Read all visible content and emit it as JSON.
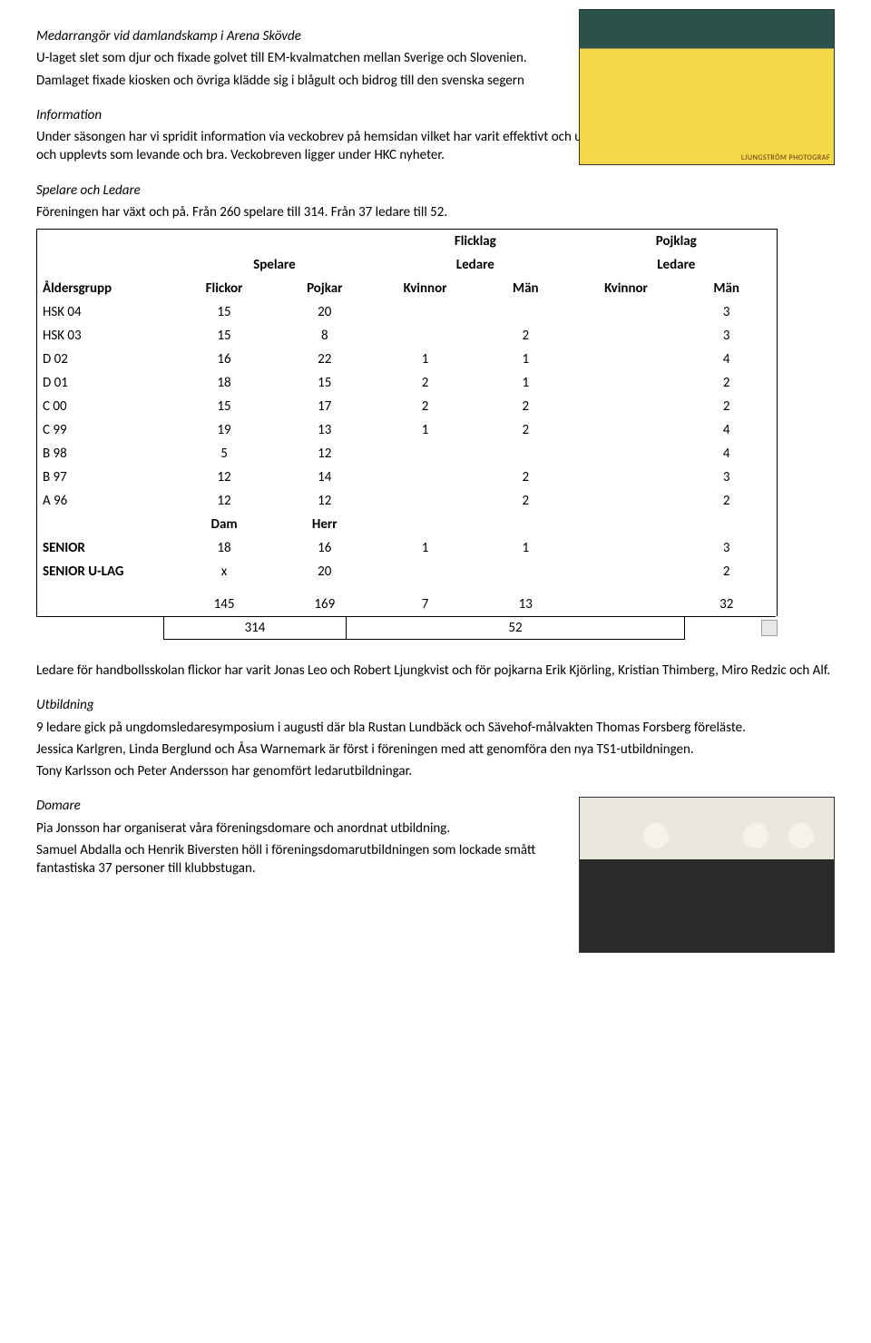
{
  "topSection": {
    "heading": "Medarrangör vid damlandskamp i Arena Skövde",
    "p1": "U-laget slet som djur och fixade golvet till EM-kvalmatchen mellan Sverige och Slovenien.",
    "p2": "Damlaget fixade kiosken och övriga klädde sig i blågult och bidrog till den svenska segern",
    "photoCredit": "LJUNGSTRÖM PHOTOGRAF"
  },
  "information": {
    "heading": "Information",
    "body": "Under säsongen har vi spridit information via veckobrev på hemsidan vilket har varit effektivt och uppskattat. Hemsidan har i stort använts flitigt och upplevts som levande och bra. Veckobreven ligger under HKC nyheter."
  },
  "spelare": {
    "heading": "Spelare och Ledare",
    "body": "Föreningen har växt och på. Från 260 spelare till 314. Från 37 ledare till 52."
  },
  "table": {
    "superHeaders": {
      "flicklag": "Flicklag",
      "pojklag": "Pojklag"
    },
    "groupHeaders": {
      "spelare": "Spelare",
      "ledare1": "Ledare",
      "ledare2": "Ledare"
    },
    "cols": {
      "age": "Åldersgrupp",
      "flickor": "Flickor",
      "pojkar": "Pojkar",
      "kvinnor1": "Kvinnor",
      "man1": "Män",
      "kvinnor2": "Kvinnor",
      "man2": "Män"
    },
    "rows": [
      {
        "age": "HSK 04",
        "f": "15",
        "p": "20",
        "k1": "",
        "m1": "",
        "k2": "",
        "m2": "3"
      },
      {
        "age": "HSK 03",
        "f": "15",
        "p": "8",
        "k1": "",
        "m1": "2",
        "k2": "",
        "m2": "3"
      },
      {
        "age": "D 02",
        "f": "16",
        "p": "22",
        "k1": "1",
        "m1": "1",
        "k2": "",
        "m2": "4"
      },
      {
        "age": "D 01",
        "f": "18",
        "p": "15",
        "k1": "2",
        "m1": "1",
        "k2": "",
        "m2": "2"
      },
      {
        "age": "C 00",
        "f": "15",
        "p": "17",
        "k1": "2",
        "m1": "2",
        "k2": "",
        "m2": "2"
      },
      {
        "age": "C 99",
        "f": "19",
        "p": "13",
        "k1": "1",
        "m1": "2",
        "k2": "",
        "m2": "4"
      },
      {
        "age": "B 98",
        "f": "5",
        "p": "12",
        "k1": "",
        "m1": "",
        "k2": "",
        "m2": "4"
      },
      {
        "age": "B 97",
        "f": "12",
        "p": "14",
        "k1": "",
        "m1": "2",
        "k2": "",
        "m2": "3"
      },
      {
        "age": "A 96",
        "f": "12",
        "p": "12",
        "k1": "",
        "m1": "2",
        "k2": "",
        "m2": "2"
      }
    ],
    "damHerr": {
      "age": "",
      "f": "Dam",
      "p": "Herr"
    },
    "senior": {
      "age": "SENIOR",
      "f": "18",
      "p": "16",
      "k1": "1",
      "m1": "1",
      "k2": "",
      "m2": "3"
    },
    "seniorU": {
      "age": "SENIOR U-LAG",
      "f": "x",
      "p": "20",
      "k1": "",
      "m1": "",
      "k2": "",
      "m2": "2"
    },
    "totals": {
      "f": "145",
      "p": "169",
      "k1": "7",
      "m1": "13",
      "m2": "32"
    },
    "grand": {
      "players": "314",
      "leaders": "52"
    }
  },
  "ledareText": "Ledare för handbollsskolan flickor har varit Jonas Leo och Robert Ljungkvist och för pojkarna Erik Kjörling, Kristian Thimberg, Miro Redzic och Alf.",
  "utbildning": {
    "heading": "Utbildning",
    "p1": "9 ledare gick på ungdomsledaresymposium i augusti där bla Rustan Lundbäck och Sävehof-målvakten Thomas Forsberg föreläste.",
    "p2": "Jessica Karlgren, Linda Berglund och Åsa Warnemark är först i föreningen med att genomföra den nya TS1-utbildningen.",
    "p3": "Tony Karlsson och Peter Andersson har genomfört ledarutbildningar."
  },
  "domare": {
    "heading": "Domare",
    "p1": "Pia Jonsson har organiserat våra föreningsdomare och anordnat utbildning.",
    "p2": "Samuel Abdalla och Henrik Biversten höll i föreningsdomarutbildningen som lockade smått fantastiska 37 personer till klubbstugan."
  }
}
